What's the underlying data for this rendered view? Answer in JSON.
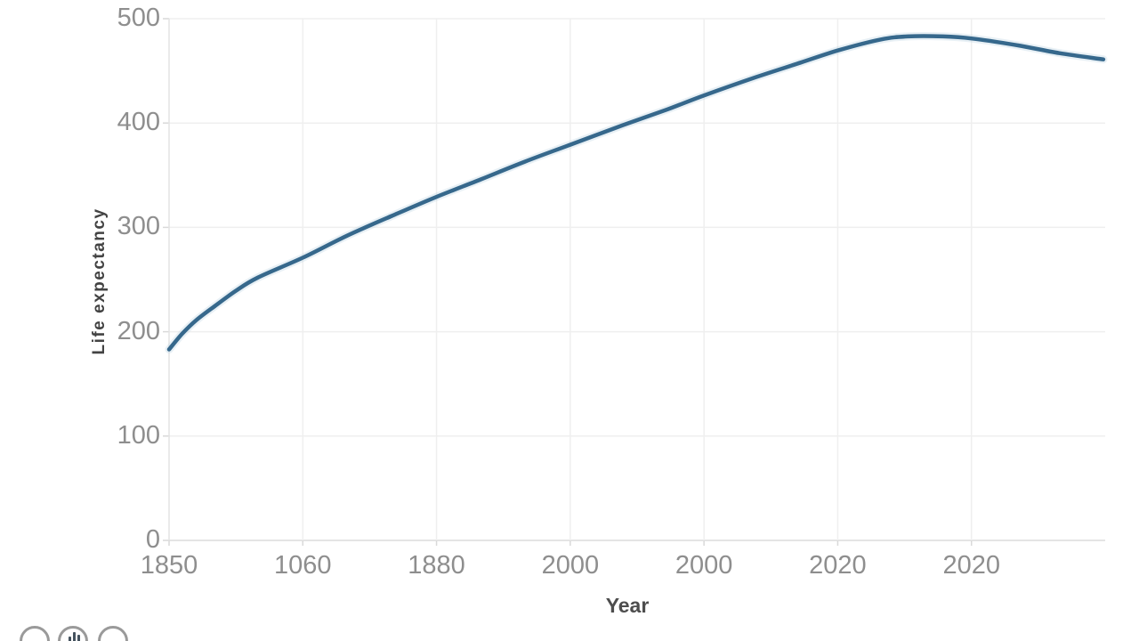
{
  "colors": {
    "line": "#36688c",
    "line_halo": "#bcd3e3",
    "grid": "#efefef",
    "axis_line": "#e2e2e2",
    "tick_text": "#8e8e8e",
    "axis_title": "#4d4d4d"
  },
  "chart_data": {
    "type": "line",
    "title": "",
    "xlabel": "Year",
    "ylabel": "Life expectancy",
    "ylim": [
      0,
      500
    ],
    "grid": true,
    "legend": "none",
    "y_tick_labels": [
      "0",
      "100",
      "200",
      "300",
      "400",
      "500"
    ],
    "x_tick_labels": [
      "1850",
      "1060",
      "1880",
      "2000",
      "2000",
      "2020",
      "2020"
    ],
    "series": [
      {
        "name": "main-line",
        "color": "#36688c",
        "points_xfrac_value": [
          [
            0.0,
            183
          ],
          [
            0.014,
            198
          ],
          [
            0.029,
            211
          ],
          [
            0.048,
            224
          ],
          [
            0.071,
            239
          ],
          [
            0.095,
            252
          ],
          [
            0.143,
            271
          ],
          [
            0.19,
            292
          ],
          [
            0.238,
            311
          ],
          [
            0.285,
            329
          ],
          [
            0.333,
            346
          ],
          [
            0.38,
            363
          ],
          [
            0.431,
            380
          ],
          [
            0.485,
            398
          ],
          [
            0.532,
            413
          ],
          [
            0.573,
            427
          ],
          [
            0.627,
            444
          ],
          [
            0.675,
            458
          ],
          [
            0.716,
            470
          ],
          [
            0.76,
            480
          ],
          [
            0.789,
            483
          ],
          [
            0.827,
            483
          ],
          [
            0.858,
            481
          ],
          [
            0.903,
            475
          ],
          [
            0.951,
            467
          ],
          [
            0.998,
            461
          ]
        ]
      }
    ]
  },
  "footer_buttons": {
    "button1_icon": "",
    "button2_icon": "bar-chart",
    "button3_icon": ""
  }
}
